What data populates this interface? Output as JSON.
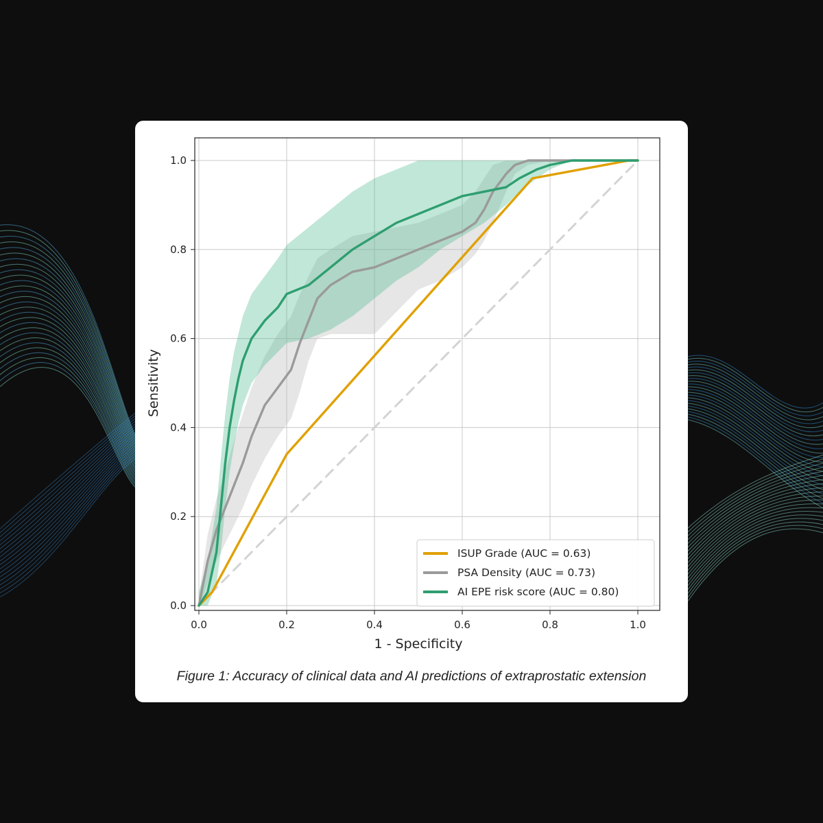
{
  "caption": "Figure 1: Accuracy of clinical data and AI predictions of extraprostatic extension",
  "colors": {
    "background": "#0e0e0e",
    "card": "#ffffff",
    "isup": "#e0a000",
    "psa": "#9a9a9a",
    "ai": "#2e9e70",
    "chance": "#d3d3d3",
    "grid": "#c8c8c8"
  },
  "chart_data": {
    "type": "line",
    "title": "",
    "xlabel": "1 - Specificity",
    "ylabel": "Sensitivity",
    "xlim": [
      0.0,
      1.0
    ],
    "ylim": [
      0.0,
      1.0
    ],
    "xticks": [
      "0.0",
      "0.2",
      "0.4",
      "0.6",
      "0.8",
      "1.0"
    ],
    "yticks": [
      "0.0",
      "0.2",
      "0.4",
      "0.6",
      "0.8",
      "1.0"
    ],
    "grid": true,
    "legend_position": "lower-right",
    "series": [
      {
        "name": "ISUP Grade (AUC = 0.63)",
        "color": "#e0a000",
        "x": [
          0.0,
          0.03,
          0.2,
          0.76,
          0.98,
          1.0
        ],
        "y": [
          0.0,
          0.03,
          0.34,
          0.96,
          1.0,
          1.0
        ]
      },
      {
        "name": "PSA Density (AUC = 0.73)",
        "color": "#9a9a9a",
        "x": [
          0.0,
          0.01,
          0.02,
          0.04,
          0.06,
          0.08,
          0.1,
          0.12,
          0.15,
          0.18,
          0.21,
          0.23,
          0.25,
          0.27,
          0.3,
          0.35,
          0.4,
          0.45,
          0.5,
          0.55,
          0.6,
          0.63,
          0.65,
          0.67,
          0.7,
          0.72,
          0.75,
          0.8,
          0.9,
          1.0
        ],
        "y": [
          0.0,
          0.05,
          0.1,
          0.17,
          0.22,
          0.27,
          0.32,
          0.38,
          0.45,
          0.49,
          0.53,
          0.59,
          0.64,
          0.69,
          0.72,
          0.75,
          0.76,
          0.78,
          0.8,
          0.82,
          0.84,
          0.86,
          0.89,
          0.93,
          0.97,
          0.99,
          1.0,
          1.0,
          1.0,
          1.0
        ],
        "band_upper": [
          0.02,
          0.09,
          0.16,
          0.24,
          0.3,
          0.37,
          0.43,
          0.49,
          0.56,
          0.61,
          0.65,
          0.7,
          0.74,
          0.78,
          0.8,
          0.83,
          0.84,
          0.85,
          0.86,
          0.88,
          0.9,
          0.93,
          0.96,
          0.99,
          1.0,
          1.0,
          1.0,
          1.0,
          1.0,
          1.0
        ],
        "band_lower": [
          0.0,
          0.02,
          0.05,
          0.1,
          0.14,
          0.18,
          0.22,
          0.27,
          0.33,
          0.38,
          0.42,
          0.48,
          0.55,
          0.6,
          0.61,
          0.61,
          0.61,
          0.66,
          0.71,
          0.73,
          0.76,
          0.79,
          0.82,
          0.86,
          0.93,
          0.97,
          0.99,
          1.0,
          1.0,
          1.0
        ]
      },
      {
        "name": "AI EPE risk score (AUC = 0.80)",
        "color": "#2e9e70",
        "x": [
          0.0,
          0.02,
          0.04,
          0.05,
          0.06,
          0.07,
          0.08,
          0.09,
          0.1,
          0.12,
          0.15,
          0.18,
          0.2,
          0.25,
          0.3,
          0.35,
          0.4,
          0.45,
          0.5,
          0.55,
          0.6,
          0.65,
          0.7,
          0.73,
          0.77,
          0.8,
          0.85,
          0.9,
          0.95,
          1.0
        ],
        "y": [
          0.0,
          0.03,
          0.12,
          0.22,
          0.32,
          0.4,
          0.46,
          0.51,
          0.55,
          0.6,
          0.64,
          0.67,
          0.7,
          0.72,
          0.76,
          0.8,
          0.83,
          0.86,
          0.88,
          0.9,
          0.92,
          0.93,
          0.94,
          0.96,
          0.98,
          0.99,
          1.0,
          1.0,
          1.0,
          1.0
        ],
        "band_upper": [
          0.03,
          0.1,
          0.22,
          0.33,
          0.43,
          0.51,
          0.57,
          0.61,
          0.65,
          0.7,
          0.74,
          0.78,
          0.81,
          0.85,
          0.89,
          0.93,
          0.96,
          0.98,
          1.0,
          1.0,
          1.0,
          1.0,
          1.0,
          1.0,
          1.0,
          1.0,
          1.0,
          1.0,
          1.0,
          1.0
        ],
        "band_lower": [
          0.0,
          0.0,
          0.05,
          0.12,
          0.22,
          0.3,
          0.36,
          0.41,
          0.45,
          0.5,
          0.54,
          0.57,
          0.59,
          0.6,
          0.62,
          0.65,
          0.69,
          0.73,
          0.76,
          0.8,
          0.83,
          0.86,
          0.9,
          0.93,
          0.96,
          0.98,
          1.0,
          1.0,
          1.0,
          1.0
        ]
      },
      {
        "name": "",
        "style": "dashed",
        "color": "#d3d3d3",
        "x": [
          0.0,
          1.0
        ],
        "y": [
          0.0,
          1.0
        ]
      }
    ]
  }
}
